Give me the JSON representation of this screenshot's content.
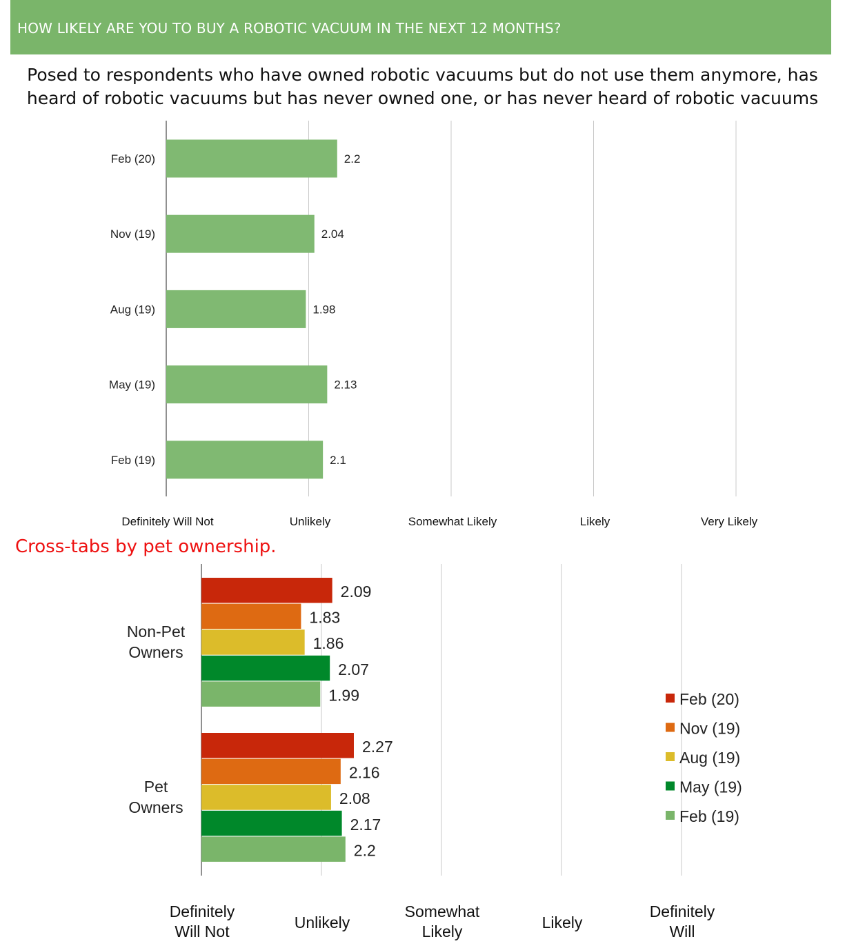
{
  "header": {
    "title": "HOW LIKELY ARE YOU TO BUY A ROBOTIC VACUUM IN THE NEXT 12 MONTHS?"
  },
  "subtitle": {
    "line1": "Posed to respondents who have owned robotic vacuums but do not use them anymore, has",
    "line2": "heard of robotic vacuums but has never owned one, or has never heard of robotic vacuums"
  },
  "crosstab_title": "Cross-tabs by pet ownership.",
  "colors": {
    "header_bg": "#7ab56a",
    "bar_top": "#80b972",
    "feb20": "#c8270a",
    "nov19": "#de6a12",
    "aug19": "#dcbc2a",
    "may19": "#00882a",
    "feb19": "#7ab56a",
    "crosstab_title": "#ee1111"
  },
  "chart_data": [
    {
      "type": "bar",
      "orientation": "horizontal",
      "categories": [
        "Feb (20)",
        "Nov (19)",
        "Aug (19)",
        "May (19)",
        "Feb (19)"
      ],
      "values": [
        2.2,
        2.04,
        1.98,
        2.13,
        2.1
      ],
      "data_labels": [
        "2.2",
        "2.04",
        "1.98",
        "2.13",
        "2.1"
      ],
      "xlim": [
        1,
        5
      ],
      "xtick_labels": [
        "Definitely Will Not",
        "Unlikely",
        "Somewhat Likely",
        "Likely",
        "Very Likely"
      ],
      "grid": true
    },
    {
      "type": "bar",
      "orientation": "horizontal",
      "categories": [
        "Non-Pet Owners",
        "Pet Owners"
      ],
      "category_lines": [
        [
          "Non-Pet",
          "Owners"
        ],
        [
          "Pet",
          "Owners"
        ]
      ],
      "series": [
        {
          "name": "Feb (20)",
          "values": [
            2.09,
            2.27
          ],
          "labels": [
            "2.09",
            "2.27"
          ]
        },
        {
          "name": "Nov (19)",
          "values": [
            1.83,
            2.16
          ],
          "labels": [
            "1.83",
            "2.16"
          ]
        },
        {
          "name": "Aug (19)",
          "values": [
            1.86,
            2.08
          ],
          "labels": [
            "1.86",
            "2.08"
          ]
        },
        {
          "name": "May (19)",
          "values": [
            2.07,
            2.17
          ],
          "labels": [
            "2.07",
            "2.17"
          ]
        },
        {
          "name": "Feb (19)",
          "values": [
            1.99,
            2.2
          ],
          "labels": [
            "1.99",
            "2.2"
          ]
        }
      ],
      "xlim": [
        1,
        5
      ],
      "xtick_labels": [
        [
          "Definitely",
          "Will Not"
        ],
        [
          "Unlikely"
        ],
        [
          "Somewhat",
          "Likely"
        ],
        [
          "Likely"
        ],
        [
          "Definitely",
          "Will"
        ]
      ],
      "legend": "right",
      "grid": true
    }
  ]
}
